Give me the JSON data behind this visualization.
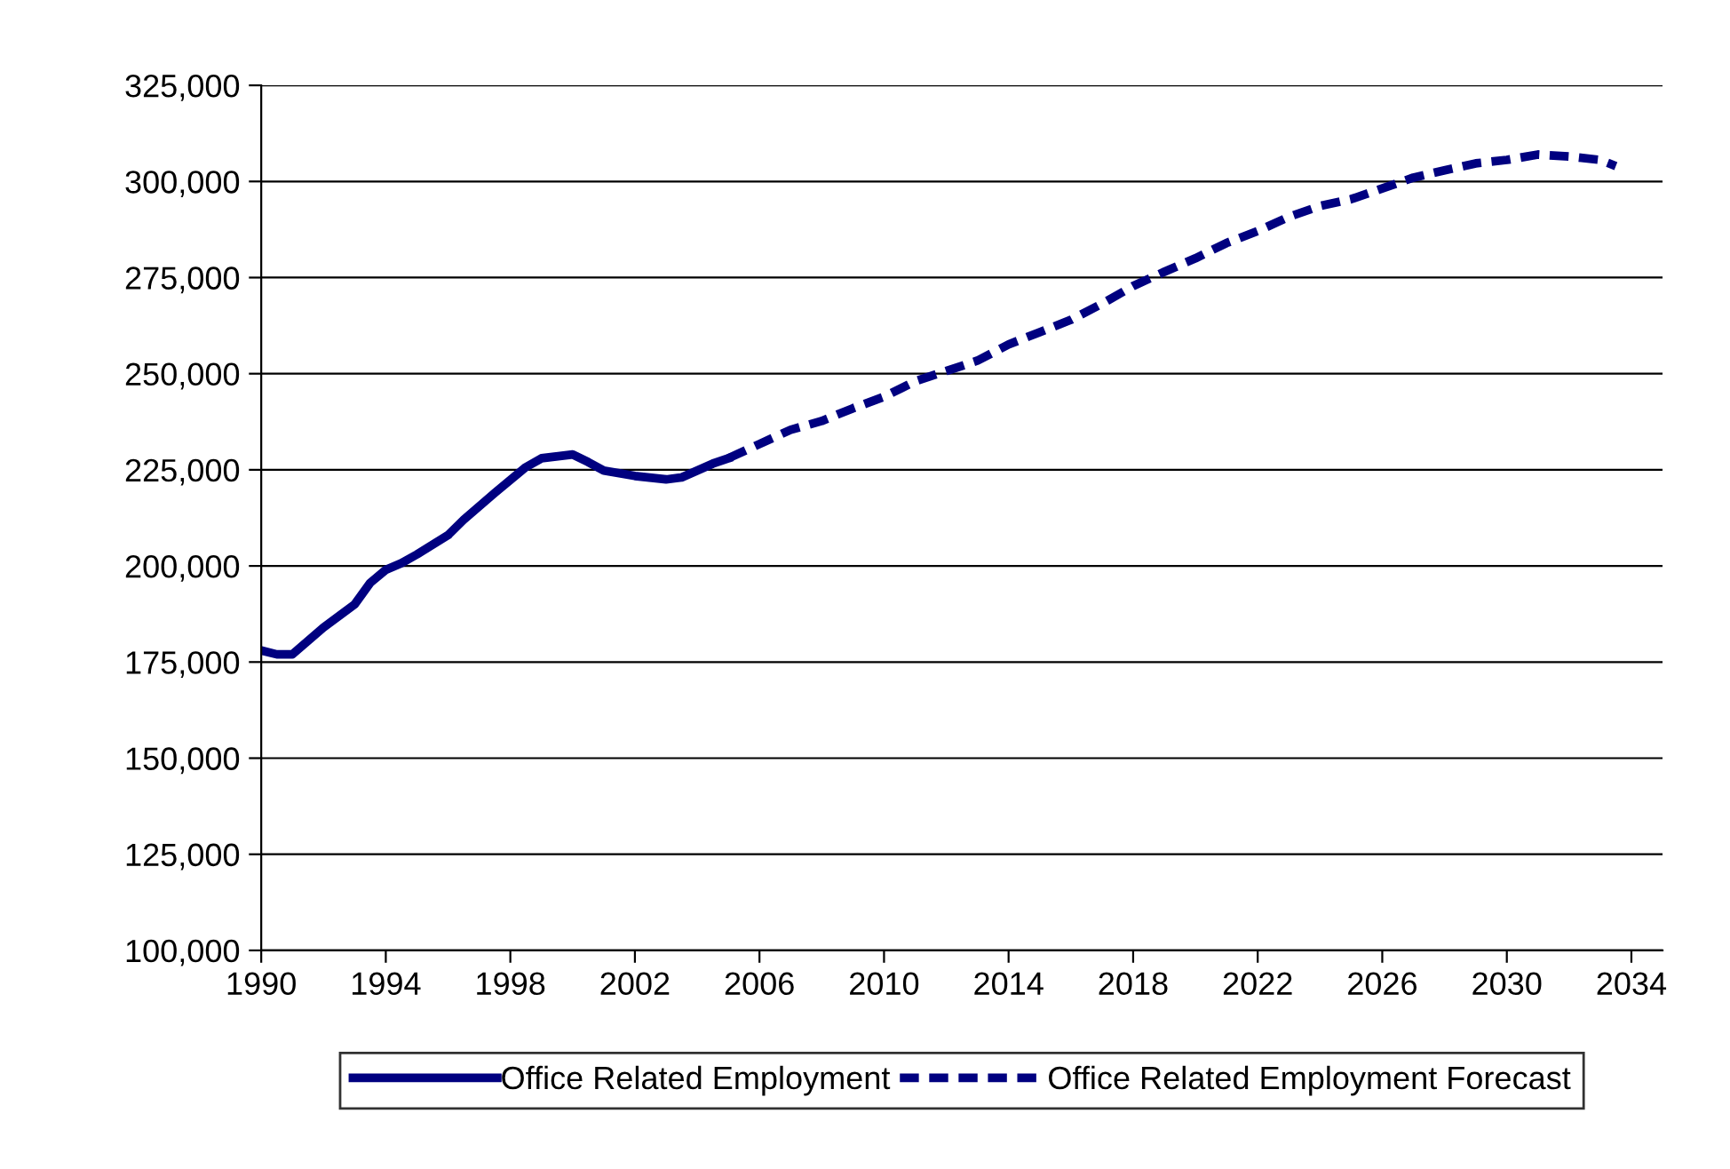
{
  "chart_data": {
    "type": "line",
    "xlim": [
      1990,
      2035
    ],
    "xticks": [
      1990,
      1994,
      1998,
      2002,
      2006,
      2010,
      2014,
      2018,
      2022,
      2026,
      2030,
      2034
    ],
    "ylim": [
      100000,
      325000
    ],
    "yticks": [
      {
        "value": 100000,
        "label": "100,000"
      },
      {
        "value": 125000,
        "label": "125,000"
      },
      {
        "value": 150000,
        "label": "150,000"
      },
      {
        "value": 175000,
        "label": "175,000"
      },
      {
        "value": 200000,
        "label": "200,000"
      },
      {
        "value": 225000,
        "label": "225,000"
      },
      {
        "value": 250000,
        "label": "250,000"
      },
      {
        "value": 275000,
        "label": "275,000"
      },
      {
        "value": 300000,
        "label": "300,000"
      },
      {
        "value": 325000,
        "label": "325,000"
      }
    ],
    "grid": "y",
    "legend": "bottom",
    "marker": "none",
    "series": [
      {
        "name": "Office Related Employment",
        "color": "#000080",
        "line_style": "solid",
        "x": [
          1990,
          1990.5,
          1991,
          1992,
          1993,
          1993.5,
          1994,
          1994.5,
          1995,
          1996,
          1996.5,
          1997.5,
          1998.5,
          1999,
          2000,
          2000.5,
          2001,
          2002,
          2003,
          2003.5,
          2004.5,
          2005
        ],
        "values": [
          178000,
          177000,
          177000,
          184000,
          190000,
          195600,
          199000,
          200700,
          203000,
          208000,
          212000,
          219000,
          225700,
          228000,
          229000,
          227000,
          224800,
          223400,
          222500,
          223000,
          226600,
          228000
        ]
      },
      {
        "name": "Office Related Employment Forecast",
        "color": "#000080",
        "line_style": "dashed",
        "x": [
          2005,
          2006,
          2007,
          2008,
          2009,
          2010,
          2011,
          2012,
          2013,
          2014,
          2015,
          2016,
          2017,
          2018,
          2019,
          2020,
          2021,
          2022,
          2023,
          2024,
          2025,
          2026,
          2027,
          2028,
          2029,
          2030,
          2031,
          2032,
          2033,
          2033.5
        ],
        "values": [
          228000,
          231700,
          235400,
          237700,
          241000,
          244000,
          248000,
          250700,
          253400,
          257600,
          260800,
          264000,
          268200,
          272800,
          276500,
          280000,
          284000,
          287100,
          290800,
          293600,
          295400,
          298200,
          301000,
          302900,
          304700,
          305600,
          307000,
          306500,
          305600,
          304000
        ]
      }
    ]
  }
}
